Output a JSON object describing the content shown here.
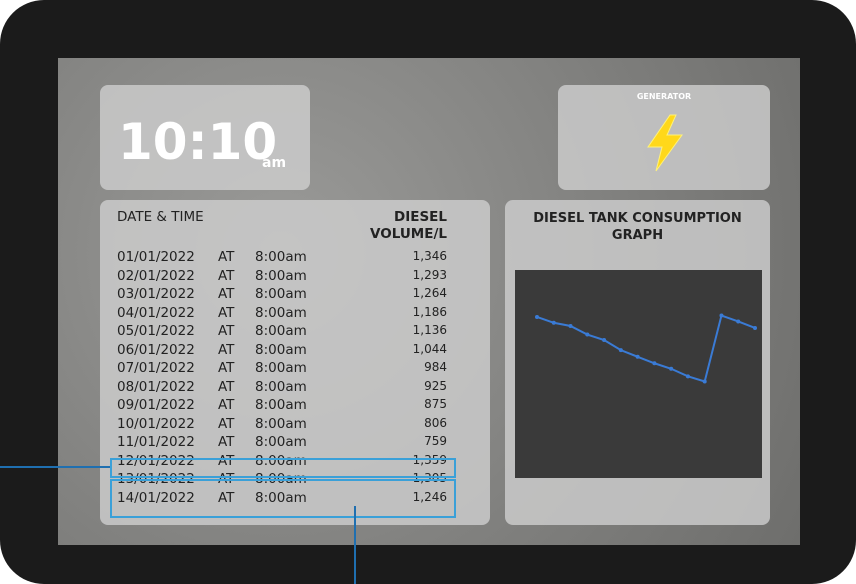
{
  "clock": {
    "time": "10:10",
    "meridiem": "am"
  },
  "generator": {
    "label": "GENERATOR"
  },
  "table": {
    "header": [
      "DATE & TIME",
      "DIESEL VOLUME/L"
    ],
    "rows": [
      [
        "01/01/2022",
        "AT",
        "8:00am",
        "1,346"
      ],
      [
        "02/01/2022",
        "AT",
        "8:00am",
        "1,293"
      ],
      [
        "03/01/2022",
        "AT",
        "8:00am",
        "1,264"
      ],
      [
        "04/01/2022",
        "AT",
        "8:00am",
        "1,186"
      ],
      [
        "05/01/2022",
        "AT",
        "8:00am",
        "1,136"
      ],
      [
        "06/01/2022",
        "AT",
        "8:00am",
        "1,044"
      ],
      [
        "07/01/2022",
        "AT",
        "8:00am",
        "984"
      ],
      [
        "08/01/2022",
        "AT",
        "8:00am",
        "925"
      ],
      [
        "09/01/2022",
        "AT",
        "8:00am",
        "875"
      ],
      [
        "10/01/2022",
        "AT",
        "8:00am",
        "806"
      ],
      [
        "11/01/2022",
        "AT",
        "8:00am",
        "759"
      ],
      [
        "12/01/2022",
        "AT",
        "8:00am",
        "1,359"
      ],
      [
        "13/01/2022",
        "AT",
        "8:00am",
        "1,305"
      ],
      [
        "14/01/2022",
        "AT",
        "8:00am",
        "1,246"
      ]
    ]
  },
  "graph": {
    "type": "line",
    "title": "DIESEL TANK CONSUMPTION GRAPH",
    "color": "#3a7bd5",
    "values": [
      1346,
      1293,
      1264,
      1186,
      1136,
      1044,
      984,
      925,
      875,
      806,
      759,
      1359,
      1305,
      1246
    ],
    "ylim": [
      0,
      1700
    ]
  }
}
